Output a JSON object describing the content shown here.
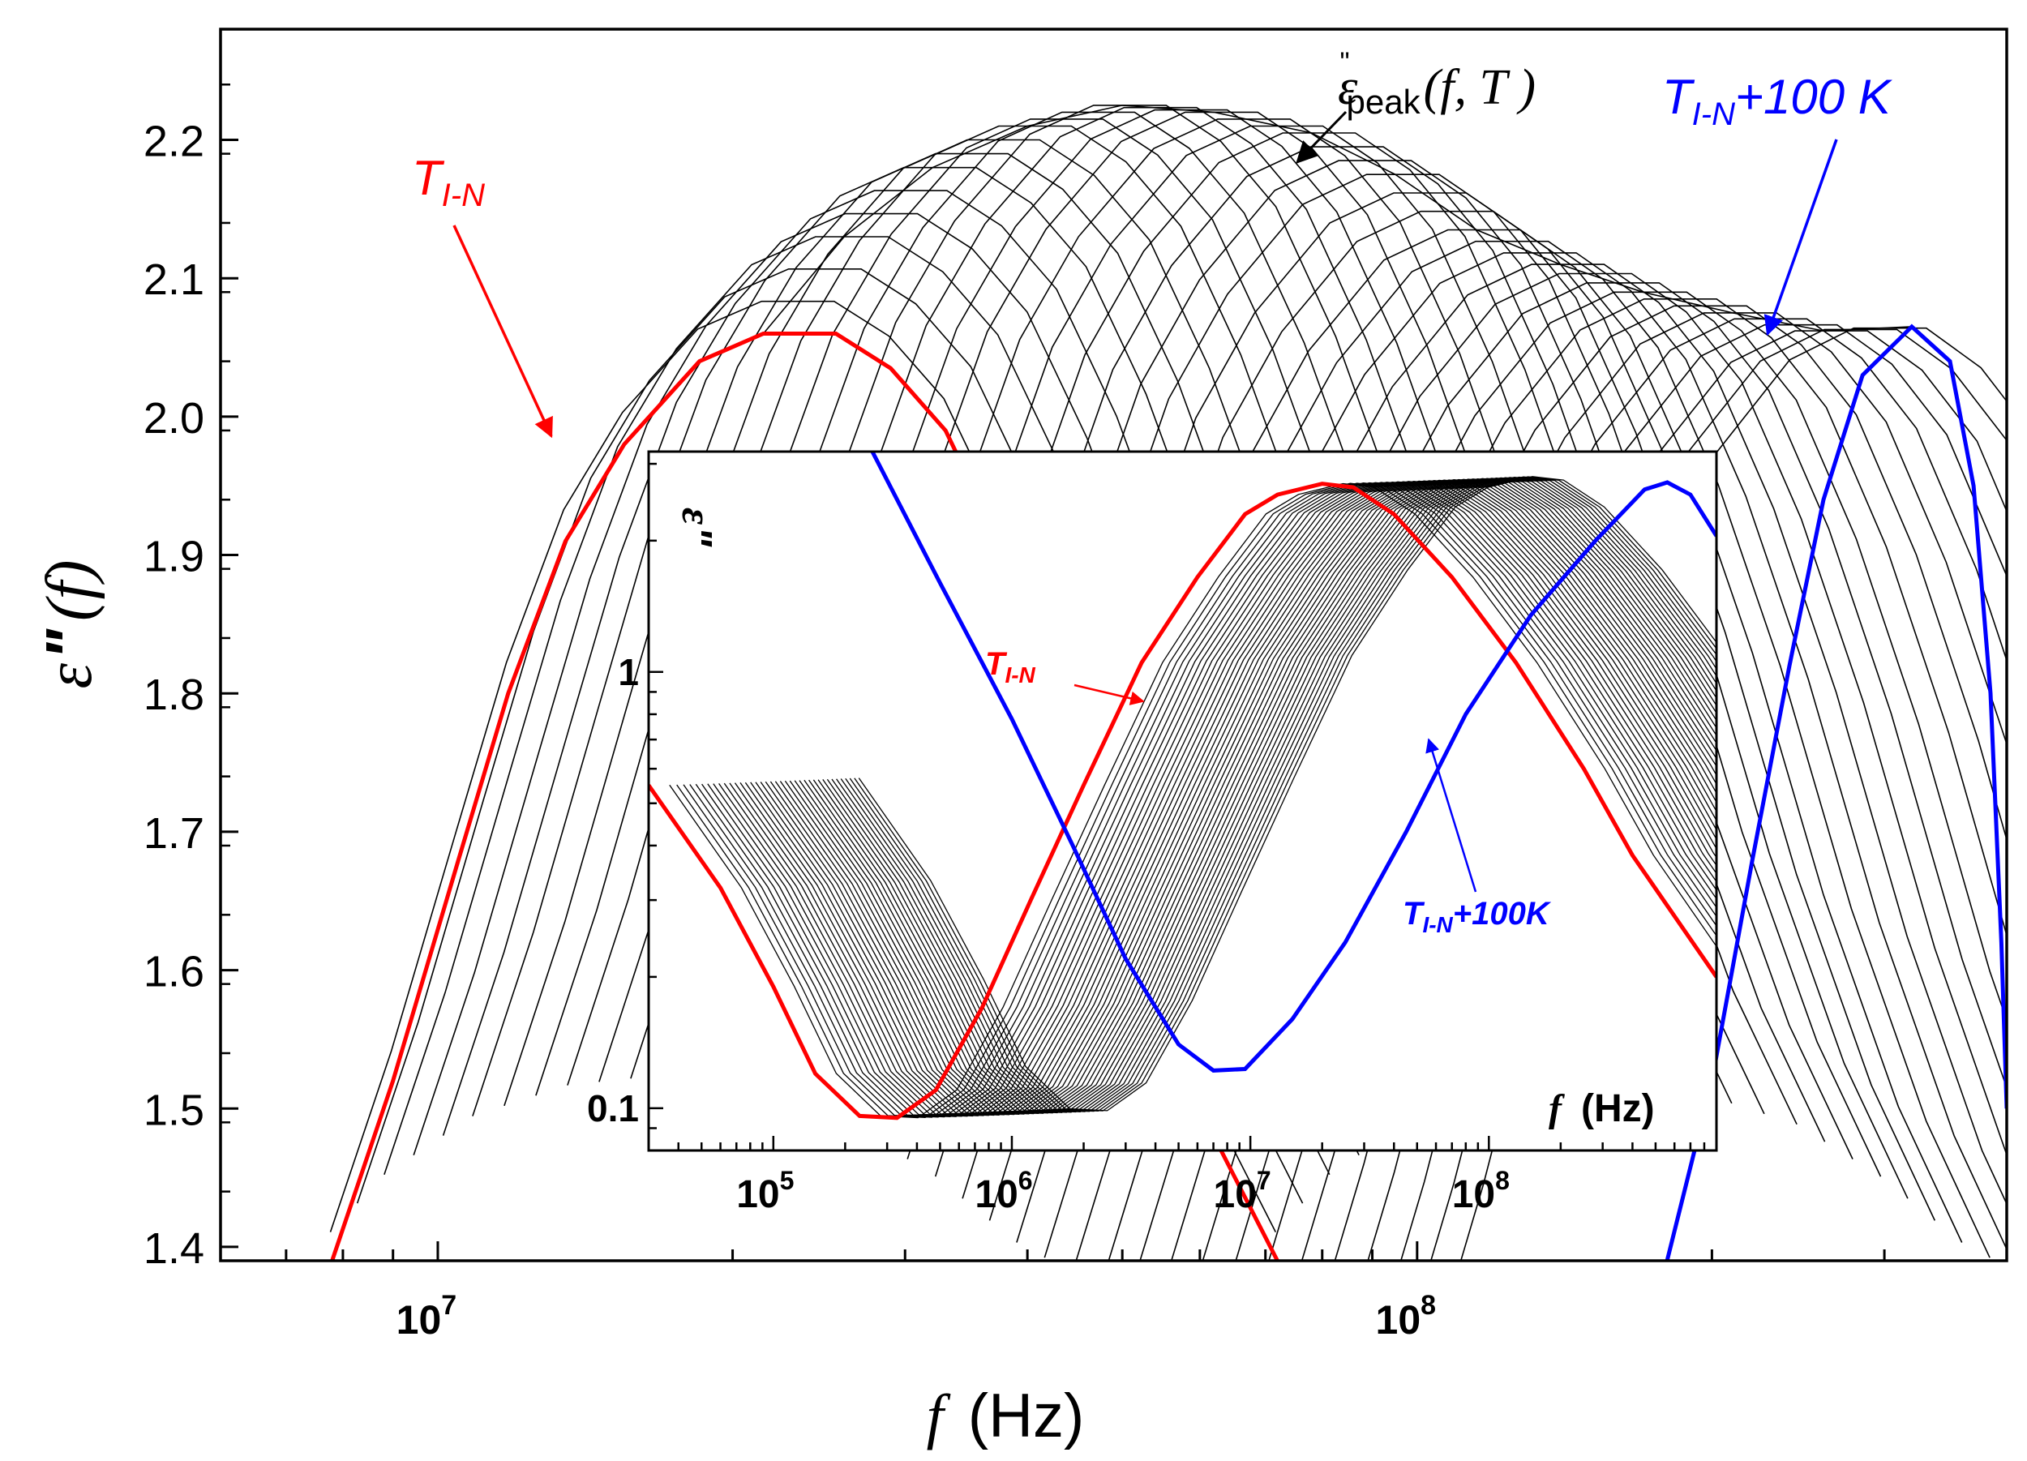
{
  "chart_data": [
    {
      "type": "line",
      "panel": "main",
      "title": "",
      "xlabel": {
        "symbol": "f",
        "unit": "(Hz)"
      },
      "ylabel": {
        "symbol": "ε",
        "prime": "\"",
        "arg": "(f)"
      },
      "xscale": "log",
      "xlim": [
        6000000,
        400000000
      ],
      "ylim": [
        1.39,
        2.28
      ],
      "x_ticks": [
        {
          "value": 10000000,
          "base": "10",
          "exp": "7"
        },
        {
          "value": 100000000,
          "base": "10",
          "exp": "8"
        }
      ],
      "y_ticks": [
        {
          "value": 1.4,
          "label": "1.4"
        },
        {
          "value": 1.5,
          "label": "1.5"
        },
        {
          "value": 1.6,
          "label": "1.6"
        },
        {
          "value": 1.7,
          "label": "1.7"
        },
        {
          "value": 1.8,
          "label": "1.8"
        },
        {
          "value": 1.9,
          "label": "1.9"
        },
        {
          "value": 2.0,
          "label": "2.0"
        },
        {
          "value": 2.1,
          "label": "2.1"
        },
        {
          "value": 2.2,
          "label": "2.2"
        }
      ],
      "n_curves": 40,
      "series": [
        {
          "name": "T_I-N",
          "color": "#ff0000",
          "points": [
            [
              7800000,
              1.39
            ],
            [
              9000000,
              1.52
            ],
            [
              10500000,
              1.68
            ],
            [
              11800000,
              1.8
            ],
            [
              13500000,
              1.91
            ],
            [
              15500000,
              1.98
            ],
            [
              18500000,
              2.04
            ],
            [
              21500000,
              2.06
            ],
            [
              25500000,
              2.06
            ],
            [
              29000000,
              2.035
            ],
            [
              33000000,
              1.99
            ],
            [
              38000000,
              1.9
            ],
            [
              44000000,
              1.78
            ],
            [
              52000000,
              1.62
            ],
            [
              62000000,
              1.48
            ],
            [
              72000000,
              1.39
            ]
          ]
        },
        {
          "name": "T_I-N+100 K",
          "color": "#0000ff",
          "points": [
            [
              180000000,
              1.39
            ],
            [
              200000000,
              1.52
            ],
            [
              220000000,
              1.68
            ],
            [
              240000000,
              1.82
            ],
            [
              260000000,
              1.94
            ],
            [
              285000000,
              2.03
            ],
            [
              320000000,
              2.065
            ],
            [
              350000000,
              2.04
            ],
            [
              370000000,
              1.95
            ],
            [
              385000000,
              1.8
            ],
            [
              395000000,
              1.62
            ],
            [
              400000000,
              1.5
            ]
          ]
        }
      ],
      "peak_envelope": [
        [
          21500000,
          2.06
        ],
        [
          26000000,
          2.13
        ],
        [
          32000000,
          2.18
        ],
        [
          40000000,
          2.21
        ],
        [
          50000000,
          2.225
        ],
        [
          62000000,
          2.22
        ],
        [
          78000000,
          2.205
        ],
        [
          95000000,
          2.175
        ],
        [
          115000000,
          2.135
        ],
        [
          140000000,
          2.11
        ],
        [
          170000000,
          2.09
        ],
        [
          210000000,
          2.075
        ],
        [
          260000000,
          2.062
        ],
        [
          320000000,
          2.065
        ]
      ],
      "annotations": [
        {
          "name": "peak-label",
          "symbol": "ε",
          "prime": "\"",
          "sub": "peak",
          "args": "(f, T )"
        },
        {
          "name": "tin-label",
          "text": "T",
          "sub": "I-N",
          "color": "#ff0000"
        },
        {
          "name": "tin100-label",
          "text": "T",
          "sub": "I-N",
          "suffix": "+100 K",
          "color": "#0000ff"
        }
      ]
    },
    {
      "type": "line",
      "panel": "inset",
      "xlabel": {
        "symbol": "f",
        "unit": "(Hz)"
      },
      "ylabel": {
        "symbol": "ε",
        "prime": "\""
      },
      "xscale": "log",
      "yscale": "log",
      "xlim": [
        30000,
        900000000
      ],
      "ylim": [
        0.08,
        3.2
      ],
      "x_ticks": [
        {
          "value": 100000,
          "base": "10",
          "exp": "5"
        },
        {
          "value": 1000000,
          "base": "10",
          "exp": "6"
        },
        {
          "value": 10000000,
          "base": "10",
          "exp": "7"
        },
        {
          "value": 100000000,
          "base": "10",
          "exp": "8"
        }
      ],
      "y_ticks": [
        {
          "value": 0.1,
          "label": "0.1"
        },
        {
          "value": 1,
          "label": "1"
        }
      ],
      "n_curves": 40,
      "series": [
        {
          "name": "T_I-N",
          "color": "#ff0000",
          "points": [
            [
              30000,
              0.55
            ],
            [
              60000,
              0.32
            ],
            [
              100000,
              0.19
            ],
            [
              150000,
              0.12
            ],
            [
              230000,
              0.096
            ],
            [
              330000,
              0.095
            ],
            [
              480000,
              0.11
            ],
            [
              750000,
              0.17
            ],
            [
              1200000,
              0.3
            ],
            [
              2000000,
              0.55
            ],
            [
              3500000,
              1.05
            ],
            [
              6000000,
              1.65
            ],
            [
              9500000,
              2.3
            ],
            [
              13000000,
              2.55
            ],
            [
              20000000,
              2.7
            ],
            [
              27000000,
              2.65
            ],
            [
              40000000,
              2.3
            ],
            [
              70000000,
              1.65
            ],
            [
              130000000,
              1.05
            ],
            [
              250000000,
              0.6
            ],
            [
              400000000,
              0.38
            ],
            [
              900000000,
              0.2
            ]
          ]
        },
        {
          "name": "T_I-N+100K",
          "color": "#0000ff",
          "points": [
            [
              260000,
              3.2
            ],
            [
              500000,
              1.6
            ],
            [
              1000000,
              0.78
            ],
            [
              1800000,
              0.4
            ],
            [
              3000000,
              0.22
            ],
            [
              5000000,
              0.14
            ],
            [
              7000000,
              0.122
            ],
            [
              9500000,
              0.123
            ],
            [
              15000000,
              0.16
            ],
            [
              25000000,
              0.24
            ],
            [
              45000000,
              0.43
            ],
            [
              80000000,
              0.8
            ],
            [
              150000000,
              1.35
            ],
            [
              280000000,
              2.0
            ],
            [
              450000000,
              2.62
            ],
            [
              560000000,
              2.72
            ],
            [
              700000000,
              2.55
            ],
            [
              900000000,
              2.05
            ]
          ]
        }
      ],
      "annotations": [
        {
          "name": "inset-tin-label",
          "text": "T",
          "sub": "I-N",
          "color": "#ff0000"
        },
        {
          "name": "inset-tin100-label",
          "text": "T",
          "sub": "I-N",
          "suffix": "+100K",
          "color": "#0000ff"
        }
      ]
    }
  ]
}
